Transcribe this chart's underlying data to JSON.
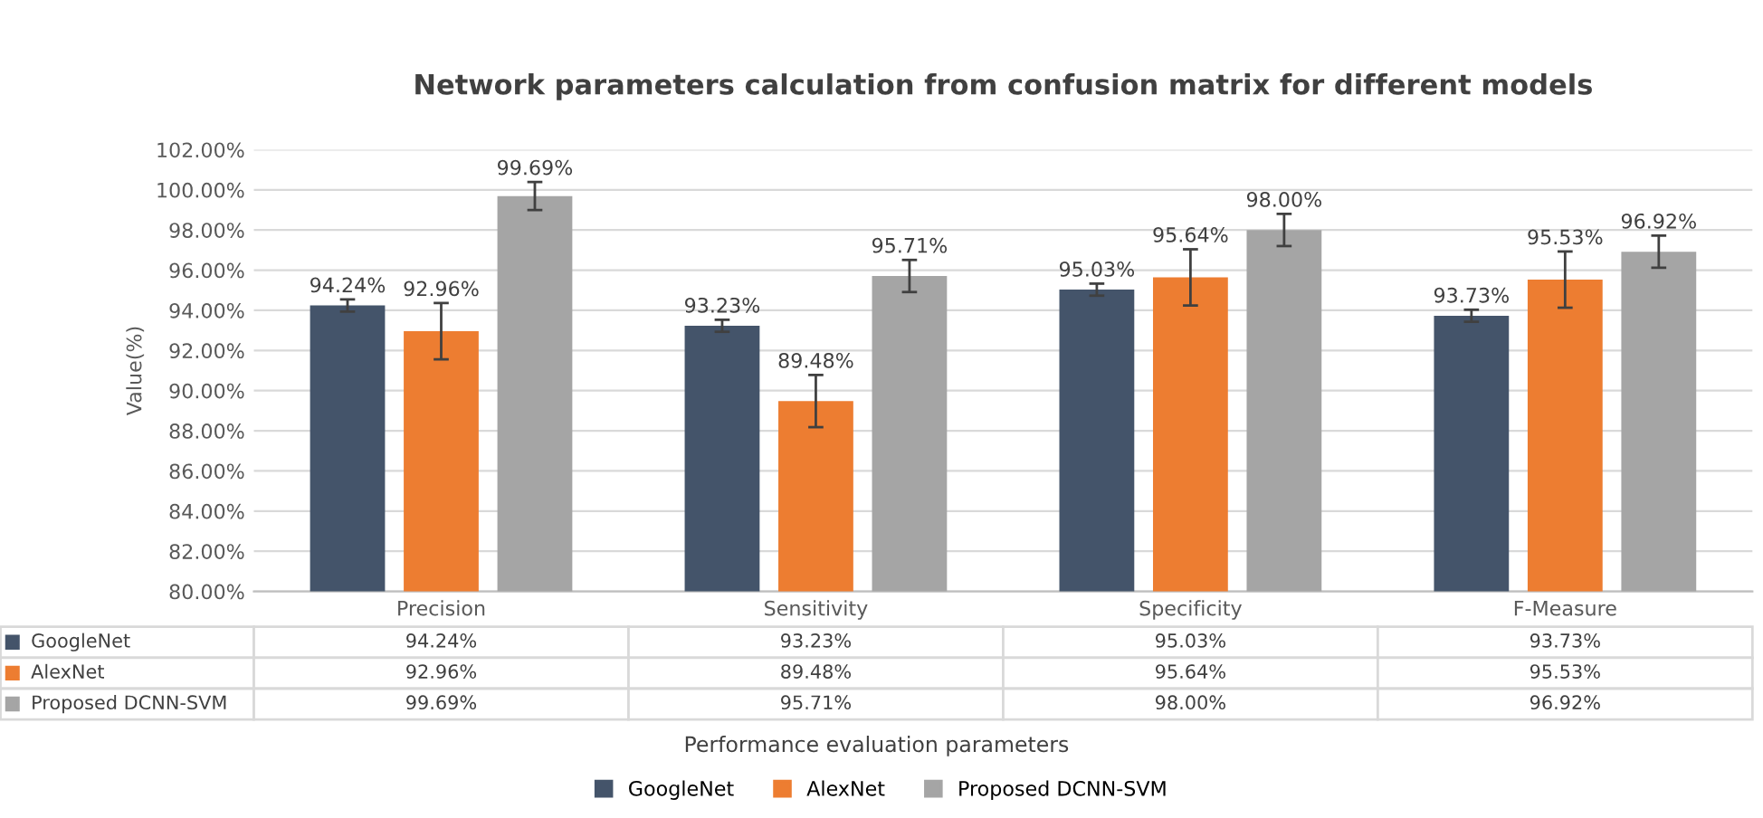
{
  "chart_data": {
    "type": "bar",
    "title": "Network parameters calculation from confusion matrix for different models",
    "annotations": [
      "Performance evaluation parameters"
    ],
    "ylabel": "Value(%)",
    "categories": [
      "Precision",
      "Sensitivity",
      "Specificity",
      "F-Measure"
    ],
    "series": [
      {
        "name": "GoogleNet",
        "color": "#44546a",
        "values": [
          94.24,
          93.23,
          95.03,
          93.73
        ],
        "errors": [
          0.3,
          0.3,
          0.3,
          0.3
        ],
        "value_labels": [
          "94.24%",
          "93.23%",
          "95.03%",
          "93.73%"
        ]
      },
      {
        "name": "AlexNet",
        "color": "#ed7d31",
        "values": [
          92.96,
          89.48,
          95.64,
          95.53
        ],
        "errors": [
          1.4,
          1.3,
          1.4,
          1.4
        ],
        "value_labels": [
          "92.96%",
          "89.48%",
          "95.64%",
          "95.53%"
        ]
      },
      {
        "name": "Proposed DCNN-SVM",
        "color": "#a5a5a5",
        "values": [
          99.69,
          95.71,
          98.0,
          96.92
        ],
        "errors": [
          0.7,
          0.8,
          0.8,
          0.8
        ],
        "value_labels": [
          "99.69%",
          "95.71%",
          "98.00%",
          "96.92%"
        ]
      }
    ],
    "ylim": [
      80,
      102
    ],
    "yticks": [
      {
        "value": 80,
        "label": "80.00%"
      },
      {
        "value": 82,
        "label": "82.00%"
      },
      {
        "value": 84,
        "label": "84.00%"
      },
      {
        "value": 86,
        "label": "86.00%"
      },
      {
        "value": 88,
        "label": "88.00%"
      },
      {
        "value": 90,
        "label": "90.00%"
      },
      {
        "value": 92,
        "label": "92.00%"
      },
      {
        "value": 94,
        "label": "94.00%"
      },
      {
        "value": 96,
        "label": "96.00%"
      },
      {
        "value": 98,
        "label": "98.00%"
      },
      {
        "value": 100,
        "label": "100.00%"
      },
      {
        "value": 102,
        "label": "102.00%"
      }
    ],
    "grid": "y",
    "legend": "bottom"
  }
}
